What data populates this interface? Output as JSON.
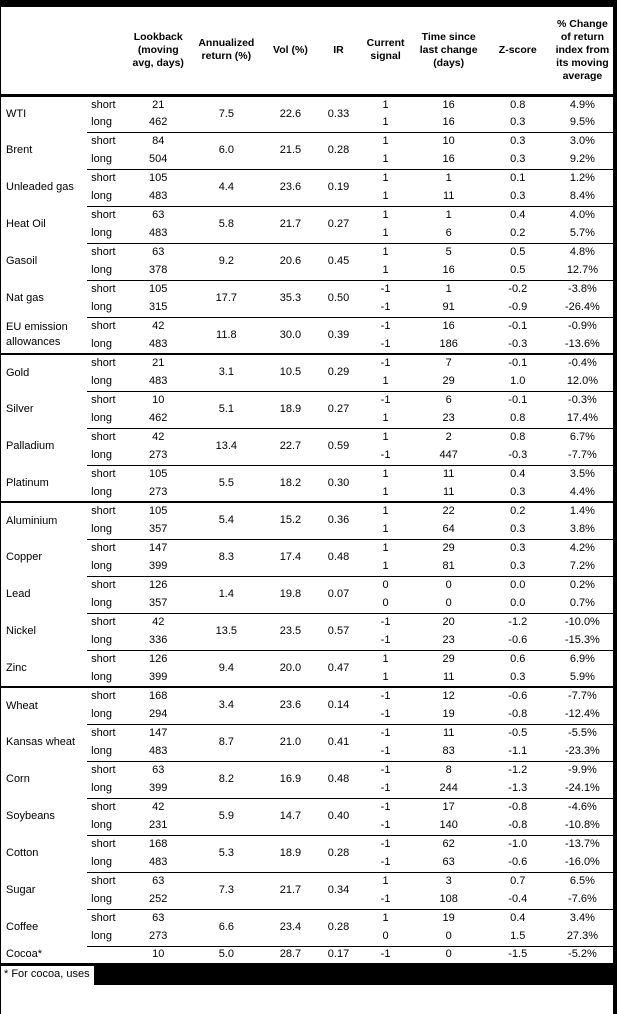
{
  "table": {
    "header_columns": [
      "Lookback (moving avg, days)",
      "Annualized return (%)",
      "Vol (%)",
      "IR",
      "Current signal",
      "Time since last change (days)",
      "Z-score",
      "% Change of return index from its moving average"
    ],
    "commodities": [
      {
        "name": "WTI",
        "section_start": false,
        "annualized_return": "7.5",
        "vol": "22.6",
        "ir": "0.33",
        "rows": [
          {
            "side": "short",
            "lookback": "21",
            "signal": "1",
            "time_since_change": "16",
            "z_score": "0.8",
            "pct_change": "4.9%"
          },
          {
            "side": "long",
            "lookback": "462",
            "signal": "1",
            "time_since_change": "16",
            "z_score": "0.3",
            "pct_change": "9.5%"
          }
        ]
      },
      {
        "name": "Brent",
        "section_start": false,
        "annualized_return": "6.0",
        "vol": "21.5",
        "ir": "0.28",
        "rows": [
          {
            "side": "short",
            "lookback": "84",
            "signal": "1",
            "time_since_change": "10",
            "z_score": "0.3",
            "pct_change": "3.0%"
          },
          {
            "side": "long",
            "lookback": "504",
            "signal": "1",
            "time_since_change": "16",
            "z_score": "0.3",
            "pct_change": "9.2%"
          }
        ]
      },
      {
        "name": "Unleaded gas",
        "section_start": false,
        "annualized_return": "4.4",
        "vol": "23.6",
        "ir": "0.19",
        "rows": [
          {
            "side": "short",
            "lookback": "105",
            "signal": "1",
            "time_since_change": "1",
            "z_score": "0.1",
            "pct_change": "1.2%"
          },
          {
            "side": "long",
            "lookback": "483",
            "signal": "1",
            "time_since_change": "11",
            "z_score": "0.3",
            "pct_change": "8.4%"
          }
        ]
      },
      {
        "name": "Heat Oil",
        "section_start": false,
        "annualized_return": "5.8",
        "vol": "21.7",
        "ir": "0.27",
        "rows": [
          {
            "side": "short",
            "lookback": "63",
            "signal": "1",
            "time_since_change": "1",
            "z_score": "0.4",
            "pct_change": "4.0%"
          },
          {
            "side": "long",
            "lookback": "483",
            "signal": "1",
            "time_since_change": "6",
            "z_score": "0.2",
            "pct_change": "5.7%"
          }
        ]
      },
      {
        "name": "Gasoil",
        "section_start": false,
        "annualized_return": "9.2",
        "vol": "20.6",
        "ir": "0.45",
        "rows": [
          {
            "side": "short",
            "lookback": "63",
            "signal": "1",
            "time_since_change": "5",
            "z_score": "0.5",
            "pct_change": "4.8%"
          },
          {
            "side": "long",
            "lookback": "378",
            "signal": "1",
            "time_since_change": "16",
            "z_score": "0.5",
            "pct_change": "12.7%"
          }
        ]
      },
      {
        "name": "Nat gas",
        "section_start": false,
        "annualized_return": "17.7",
        "vol": "35.3",
        "ir": "0.50",
        "rows": [
          {
            "side": "short",
            "lookback": "105",
            "signal": "-1",
            "time_since_change": "1",
            "z_score": "-0.2",
            "pct_change": "-3.8%"
          },
          {
            "side": "long",
            "lookback": "315",
            "signal": "-1",
            "time_since_change": "91",
            "z_score": "-0.9",
            "pct_change": "-26.4%"
          }
        ]
      },
      {
        "name": "EU emission allowances",
        "section_start": false,
        "annualized_return": "11.8",
        "vol": "30.0",
        "ir": "0.39",
        "rows": [
          {
            "side": "short",
            "lookback": "42",
            "signal": "-1",
            "time_since_change": "16",
            "z_score": "-0.1",
            "pct_change": "-0.9%"
          },
          {
            "side": "long",
            "lookback": "483",
            "signal": "-1",
            "time_since_change": "186",
            "z_score": "-0.3",
            "pct_change": "-13.6%"
          }
        ]
      },
      {
        "name": "Gold",
        "section_start": true,
        "annualized_return": "3.1",
        "vol": "10.5",
        "ir": "0.29",
        "rows": [
          {
            "side": "short",
            "lookback": "21",
            "signal": "-1",
            "time_since_change": "7",
            "z_score": "-0.1",
            "pct_change": "-0.4%"
          },
          {
            "side": "long",
            "lookback": "483",
            "signal": "1",
            "time_since_change": "29",
            "z_score": "1.0",
            "pct_change": "12.0%"
          }
        ]
      },
      {
        "name": "Silver",
        "section_start": false,
        "annualized_return": "5.1",
        "vol": "18.9",
        "ir": "0.27",
        "rows": [
          {
            "side": "short",
            "lookback": "10",
            "signal": "-1",
            "time_since_change": "6",
            "z_score": "-0.1",
            "pct_change": "-0.3%"
          },
          {
            "side": "long",
            "lookback": "462",
            "signal": "1",
            "time_since_change": "23",
            "z_score": "0.8",
            "pct_change": "17.4%"
          }
        ]
      },
      {
        "name": "Palladium",
        "section_start": false,
        "annualized_return": "13.4",
        "vol": "22.7",
        "ir": "0.59",
        "rows": [
          {
            "side": "short",
            "lookback": "42",
            "signal": "1",
            "time_since_change": "2",
            "z_score": "0.8",
            "pct_change": "6.7%"
          },
          {
            "side": "long",
            "lookback": "273",
            "signal": "-1",
            "time_since_change": "447",
            "z_score": "-0.3",
            "pct_change": "-7.7%"
          }
        ]
      },
      {
        "name": "Platinum",
        "section_start": false,
        "annualized_return": "5.5",
        "vol": "18.2",
        "ir": "0.30",
        "rows": [
          {
            "side": "short",
            "lookback": "105",
            "signal": "1",
            "time_since_change": "11",
            "z_score": "0.4",
            "pct_change": "3.5%"
          },
          {
            "side": "long",
            "lookback": "273",
            "signal": "1",
            "time_since_change": "11",
            "z_score": "0.3",
            "pct_change": "4.4%"
          }
        ]
      },
      {
        "name": "Aluminium",
        "section_start": true,
        "annualized_return": "5.4",
        "vol": "15.2",
        "ir": "0.36",
        "rows": [
          {
            "side": "short",
            "lookback": "105",
            "signal": "1",
            "time_since_change": "22",
            "z_score": "0.2",
            "pct_change": "1.4%"
          },
          {
            "side": "long",
            "lookback": "357",
            "signal": "1",
            "time_since_change": "64",
            "z_score": "0.3",
            "pct_change": "3.8%"
          }
        ]
      },
      {
        "name": "Copper",
        "section_start": false,
        "annualized_return": "8.3",
        "vol": "17.4",
        "ir": "0.48",
        "rows": [
          {
            "side": "short",
            "lookback": "147",
            "signal": "1",
            "time_since_change": "29",
            "z_score": "0.3",
            "pct_change": "4.2%"
          },
          {
            "side": "long",
            "lookback": "399",
            "signal": "1",
            "time_since_change": "81",
            "z_score": "0.3",
            "pct_change": "7.2%"
          }
        ]
      },
      {
        "name": "Lead",
        "section_start": false,
        "annualized_return": "1.4",
        "vol": "19.8",
        "ir": "0.07",
        "rows": [
          {
            "side": "short",
            "lookback": "126",
            "signal": "0",
            "time_since_change": "0",
            "z_score": "0.0",
            "pct_change": "0.2%"
          },
          {
            "side": "long",
            "lookback": "357",
            "signal": "0",
            "time_since_change": "0",
            "z_score": "0.0",
            "pct_change": "0.7%"
          }
        ]
      },
      {
        "name": "Nickel",
        "section_start": false,
        "annualized_return": "13.5",
        "vol": "23.5",
        "ir": "0.57",
        "rows": [
          {
            "side": "short",
            "lookback": "42",
            "signal": "-1",
            "time_since_change": "20",
            "z_score": "-1.2",
            "pct_change": "-10.0%"
          },
          {
            "side": "long",
            "lookback": "336",
            "signal": "-1",
            "time_since_change": "23",
            "z_score": "-0.6",
            "pct_change": "-15.3%"
          }
        ]
      },
      {
        "name": "Zinc",
        "section_start": false,
        "annualized_return": "9.4",
        "vol": "20.0",
        "ir": "0.47",
        "rows": [
          {
            "side": "short",
            "lookback": "126",
            "signal": "1",
            "time_since_change": "29",
            "z_score": "0.6",
            "pct_change": "6.9%"
          },
          {
            "side": "long",
            "lookback": "399",
            "signal": "1",
            "time_since_change": "11",
            "z_score": "0.3",
            "pct_change": "5.9%"
          }
        ]
      },
      {
        "name": "Wheat",
        "section_start": true,
        "annualized_return": "3.4",
        "vol": "23.6",
        "ir": "0.14",
        "rows": [
          {
            "side": "short",
            "lookback": "168",
            "signal": "-1",
            "time_since_change": "12",
            "z_score": "-0.6",
            "pct_change": "-7.7%"
          },
          {
            "side": "long",
            "lookback": "294",
            "signal": "-1",
            "time_since_change": "19",
            "z_score": "-0.8",
            "pct_change": "-12.4%"
          }
        ]
      },
      {
        "name": "Kansas wheat",
        "section_start": false,
        "annualized_return": "8.7",
        "vol": "21.0",
        "ir": "0.41",
        "rows": [
          {
            "side": "short",
            "lookback": "147",
            "signal": "-1",
            "time_since_change": "11",
            "z_score": "-0.5",
            "pct_change": "-5.5%"
          },
          {
            "side": "long",
            "lookback": "483",
            "signal": "-1",
            "time_since_change": "83",
            "z_score": "-1.1",
            "pct_change": "-23.3%"
          }
        ]
      },
      {
        "name": "Corn",
        "section_start": false,
        "annualized_return": "8.2",
        "vol": "16.9",
        "ir": "0.48",
        "rows": [
          {
            "side": "short",
            "lookback": "63",
            "signal": "-1",
            "time_since_change": "8",
            "z_score": "-1.2",
            "pct_change": "-9.9%"
          },
          {
            "side": "long",
            "lookback": "399",
            "signal": "-1",
            "time_since_change": "244",
            "z_score": "-1.3",
            "pct_change": "-24.1%"
          }
        ]
      },
      {
        "name": "Soybeans",
        "section_start": false,
        "annualized_return": "5.9",
        "vol": "14.7",
        "ir": "0.40",
        "rows": [
          {
            "side": "short",
            "lookback": "42",
            "signal": "-1",
            "time_since_change": "17",
            "z_score": "-0.8",
            "pct_change": "-4.6%"
          },
          {
            "side": "long",
            "lookback": "231",
            "signal": "-1",
            "time_since_change": "140",
            "z_score": "-0.8",
            "pct_change": "-10.8%"
          }
        ]
      },
      {
        "name": "Cotton",
        "section_start": false,
        "annualized_return": "5.3",
        "vol": "18.9",
        "ir": "0.28",
        "rows": [
          {
            "side": "short",
            "lookback": "168",
            "signal": "-1",
            "time_since_change": "62",
            "z_score": "-1.0",
            "pct_change": "-13.7%"
          },
          {
            "side": "long",
            "lookback": "483",
            "signal": "-1",
            "time_since_change": "63",
            "z_score": "-0.6",
            "pct_change": "-16.0%"
          }
        ]
      },
      {
        "name": "Sugar",
        "section_start": false,
        "annualized_return": "7.3",
        "vol": "21.7",
        "ir": "0.34",
        "rows": [
          {
            "side": "short",
            "lookback": "63",
            "signal": "1",
            "time_since_change": "3",
            "z_score": "0.7",
            "pct_change": "6.5%"
          },
          {
            "side": "long",
            "lookback": "252",
            "signal": "-1",
            "time_since_change": "108",
            "z_score": "-0.4",
            "pct_change": "-7.6%"
          }
        ]
      },
      {
        "name": "Coffee",
        "section_start": false,
        "annualized_return": "6.6",
        "vol": "23.4",
        "ir": "0.28",
        "rows": [
          {
            "side": "short",
            "lookback": "63",
            "signal": "1",
            "time_since_change": "19",
            "z_score": "0.4",
            "pct_change": "3.4%"
          },
          {
            "side": "long",
            "lookback": "273",
            "signal": "0",
            "time_since_change": "0",
            "z_score": "1.5",
            "pct_change": "27.3%"
          }
        ]
      },
      {
        "name": "Cocoa*",
        "section_start": false,
        "annualized_return": "5.0",
        "vol": "28.7",
        "ir": "0.17",
        "rows": [
          {
            "side": "",
            "lookback": "10",
            "signal": "-1",
            "time_since_change": "0",
            "z_score": "-1.5",
            "pct_change": "-5.2%"
          }
        ]
      }
    ]
  },
  "footnote": {
    "visible_text": "* For cocoa, uses",
    "redacted": true
  },
  "colors": {
    "text": "#000000",
    "background": "#ffffff",
    "border": "#000000",
    "redaction": "#000000"
  }
}
